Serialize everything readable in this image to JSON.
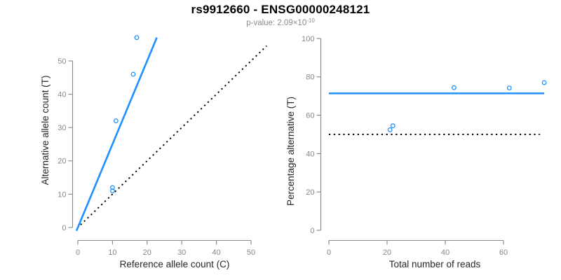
{
  "header": {
    "title": "rs9912660 - ENSG00000248121",
    "pvalue_base": "p-value: 2.09×10",
    "pvalue_exponent": "-10"
  },
  "colors": {
    "line_blue": "#1E90FF",
    "marker_blue": "#1E90FF",
    "dotted_black": "#000000",
    "axis_gray": "#878787",
    "tick_label_gray": "#878787",
    "axis_title_color": "#262626"
  },
  "chart_data": [
    {
      "id": "allele-counts",
      "type": "scatter",
      "xlabel": "Reference allele count (C)",
      "ylabel": "Alternative allele count (T)",
      "xlim": [
        0,
        50
      ],
      "ylim": [
        0,
        57
      ],
      "xticks": [
        0,
        10,
        20,
        30,
        40,
        50
      ],
      "yticks": [
        0,
        10,
        20,
        30,
        40,
        50
      ],
      "grid": false,
      "points": [
        [
          10,
          11
        ],
        [
          10,
          12
        ],
        [
          11,
          32
        ],
        [
          16,
          46
        ],
        [
          17,
          57
        ]
      ],
      "lines": [
        {
          "name": "regression-fit",
          "style": "solid",
          "color_key": "line_blue",
          "slope": 2.5,
          "intercept": 0,
          "x_range": [
            -0.4,
            22.8
          ]
        },
        {
          "name": "identity-diagonal",
          "style": "dotted",
          "color_key": "dotted_black",
          "slope": 1,
          "intercept": 0,
          "x_range": [
            0.8,
            54.5
          ]
        }
      ]
    },
    {
      "id": "percentage-alternative",
      "type": "scatter",
      "xlabel": "Total number of reads",
      "ylabel": "Percentage alternative (T)",
      "xlim": [
        0,
        74
      ],
      "ylim": [
        0,
        100
      ],
      "xticks": [
        0,
        20,
        40,
        60
      ],
      "yticks": [
        0,
        20,
        40,
        60,
        80,
        100
      ],
      "grid": false,
      "points": [
        [
          21,
          52.4
        ],
        [
          22,
          54.5
        ],
        [
          43,
          74.4
        ],
        [
          62,
          74.2
        ],
        [
          74,
          77
        ]
      ],
      "lines": [
        {
          "name": "mean-percentage",
          "style": "solid",
          "color_key": "line_blue",
          "slope": 0,
          "intercept": 71.4,
          "x_range": [
            0,
            74
          ]
        },
        {
          "name": "fifty-percent-null",
          "style": "dotted",
          "color_key": "dotted_black",
          "slope": 0,
          "intercept": 50,
          "x_range": [
            0,
            72.5
          ]
        }
      ]
    }
  ]
}
